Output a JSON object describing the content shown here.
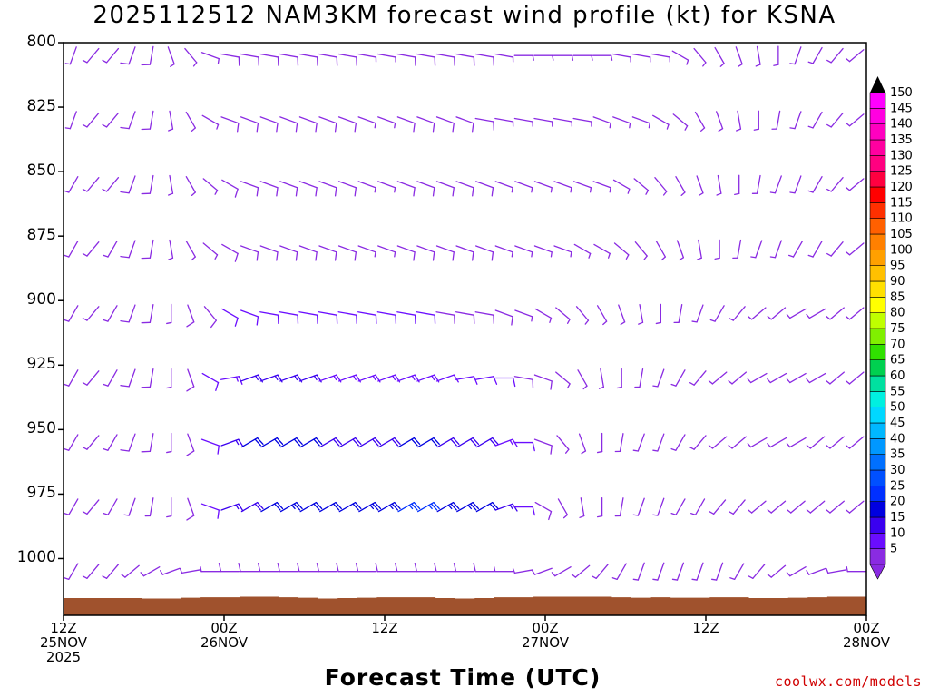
{
  "title": "2025112512 NAM3KM forecast wind profile (kt) for KSNA",
  "credit": "coolwx.com/models",
  "chart_data": {
    "type": "wind_barb_time_height",
    "title": "2025112512 NAM3KM forecast wind profile (kt) for KSNA",
    "xlabel": "Forecast Time (UTC)",
    "ylabel": "",
    "ylim": [
      1022,
      800
    ],
    "y_ticks": [
      "800",
      "825",
      "850",
      "875",
      "900",
      "925",
      "950",
      "975",
      "1000"
    ],
    "x_ticks": [
      {
        "hour": 0,
        "line1": "12Z",
        "line2": "25NOV",
        "line3": "2025"
      },
      {
        "hour": 12,
        "line1": "00Z",
        "line2": "26NOV",
        "line3": ""
      },
      {
        "hour": 24,
        "line1": "12Z",
        "line2": "",
        "line3": ""
      },
      {
        "hour": 36,
        "line1": "00Z",
        "line2": "27NOV",
        "line3": ""
      },
      {
        "hour": 48,
        "line1": "12Z",
        "line2": "",
        "line3": ""
      },
      {
        "hour": 60,
        "line1": "00Z",
        "line2": "28NOV",
        "line3": ""
      }
    ],
    "hours_range": [
      0,
      60
    ],
    "legend_placement": "right",
    "color_scale": {
      "levels": [
        5,
        10,
        15,
        20,
        25,
        30,
        35,
        40,
        45,
        50,
        55,
        60,
        65,
        70,
        75,
        80,
        85,
        90,
        95,
        100,
        105,
        110,
        115,
        120,
        125,
        130,
        135,
        140,
        145,
        150
      ],
      "colors": [
        "#8a2be2",
        "#6a0dff",
        "#3a00f0",
        "#0000e0",
        "#0030ff",
        "#0050ff",
        "#0070ff",
        "#0098ff",
        "#00b8ff",
        "#00d8ff",
        "#00f0e0",
        "#00e0a0",
        "#00d050",
        "#30e000",
        "#80f000",
        "#c0ff00",
        "#ffff00",
        "#ffe000",
        "#ffc000",
        "#ffa000",
        "#ff8000",
        "#ff6000",
        "#ff3000",
        "#ff0000",
        "#ff0040",
        "#ff0080",
        "#ff00a0",
        "#ff00c0",
        "#ff00e0",
        "#ff00ff"
      ]
    },
    "terrain": {
      "color": "#a0522d",
      "surface_pressure": [
        1015.3,
        1015.3,
        1015.3,
        1015.3,
        1015.5,
        1015.5,
        1015.2,
        1015.0,
        1015.0,
        1014.8,
        1014.8,
        1015.0,
        1015.2,
        1015.5,
        1015.3,
        1015.2,
        1015.0,
        1015.0,
        1015.0,
        1015.3,
        1015.5,
        1015.3,
        1015.0,
        1015.0,
        1014.8,
        1014.8,
        1014.8,
        1014.8,
        1015.0,
        1015.2,
        1015.0,
        1015.2,
        1015.2,
        1015.0,
        1015.0,
        1015.3,
        1015.3,
        1015.2,
        1015.0,
        1014.8,
        1014.8
      ]
    },
    "low_level_jet": {
      "hours": [
        15.0,
        31.5
      ],
      "pressure": [
        925,
        975
      ],
      "peak_kt": 25,
      "direction_deg": 60
    },
    "series": [
      {
        "pressure": 805,
        "speed_kt": [
          6,
          6,
          6,
          8,
          8,
          7,
          7,
          7,
          8,
          8,
          9,
          9,
          9,
          8,
          8,
          7,
          7,
          8,
          8,
          8,
          8,
          8,
          7,
          6,
          6,
          6,
          6,
          6,
          5,
          6,
          6,
          6,
          6,
          6,
          6,
          6,
          6,
          6,
          6,
          6,
          6
        ],
        "dir_deg": [
          200,
          220,
          220,
          200,
          190,
          160,
          140,
          110,
          100,
          100,
          100,
          100,
          100,
          100,
          100,
          100,
          100,
          100,
          100,
          100,
          100,
          100,
          100,
          90,
          90,
          90,
          90,
          90,
          100,
          100,
          100,
          120,
          140,
          150,
          160,
          170,
          180,
          200,
          210,
          220,
          230
        ]
      },
      {
        "pressure": 830,
        "speed_kt": [
          6,
          6,
          6,
          8,
          8,
          7,
          7,
          7,
          8,
          8,
          9,
          9,
          9,
          8,
          8,
          7,
          7,
          8,
          8,
          8,
          8,
          8,
          7,
          6,
          6,
          6,
          6,
          6,
          5,
          6,
          6,
          6,
          6,
          6,
          6,
          6,
          6,
          6,
          6,
          6,
          6
        ],
        "dir_deg": [
          200,
          220,
          220,
          200,
          190,
          170,
          150,
          120,
          110,
          110,
          110,
          110,
          110,
          110,
          110,
          110,
          110,
          110,
          110,
          110,
          110,
          100,
          100,
          100,
          100,
          100,
          100,
          110,
          110,
          110,
          120,
          130,
          150,
          160,
          170,
          180,
          190,
          200,
          210,
          220,
          230
        ]
      },
      {
        "pressure": 855,
        "speed_kt": [
          6,
          6,
          6,
          8,
          8,
          7,
          7,
          7,
          8,
          8,
          9,
          9,
          9,
          8,
          8,
          7,
          7,
          8,
          8,
          8,
          8,
          8,
          7,
          6,
          6,
          6,
          6,
          6,
          5,
          6,
          6,
          6,
          6,
          6,
          6,
          6,
          6,
          6,
          6,
          6,
          6
        ],
        "dir_deg": [
          210,
          220,
          220,
          200,
          190,
          170,
          150,
          130,
          120,
          110,
          110,
          110,
          110,
          110,
          110,
          110,
          110,
          110,
          110,
          110,
          110,
          110,
          110,
          110,
          110,
          110,
          110,
          110,
          120,
          130,
          140,
          150,
          160,
          170,
          180,
          190,
          200,
          200,
          210,
          220,
          230
        ]
      },
      {
        "pressure": 880,
        "speed_kt": [
          6,
          6,
          6,
          8,
          8,
          7,
          7,
          7,
          8,
          8,
          9,
          9,
          9,
          8,
          8,
          7,
          7,
          8,
          8,
          8,
          8,
          8,
          7,
          6,
          6,
          6,
          6,
          6,
          5,
          6,
          6,
          6,
          6,
          6,
          6,
          6,
          6,
          6,
          6,
          6,
          6
        ],
        "dir_deg": [
          210,
          220,
          210,
          200,
          190,
          170,
          150,
          130,
          120,
          110,
          110,
          110,
          110,
          110,
          110,
          110,
          110,
          110,
          110,
          110,
          110,
          110,
          110,
          110,
          110,
          110,
          120,
          120,
          130,
          140,
          150,
          160,
          170,
          180,
          190,
          200,
          200,
          210,
          210,
          220,
          230
        ]
      },
      {
        "pressure": 905,
        "speed_kt": [
          6,
          6,
          6,
          8,
          8,
          7,
          8,
          9,
          10,
          10,
          11,
          11,
          11,
          10,
          10,
          10,
          10,
          10,
          10,
          9,
          9,
          9,
          8,
          7,
          7,
          6,
          6,
          6,
          5,
          6,
          6,
          6,
          6,
          6,
          6,
          6,
          6,
          6,
          6,
          6,
          6
        ],
        "dir_deg": [
          210,
          220,
          210,
          200,
          190,
          180,
          160,
          140,
          120,
          110,
          100,
          100,
          100,
          100,
          100,
          100,
          100,
          100,
          100,
          100,
          100,
          100,
          110,
          110,
          120,
          130,
          140,
          150,
          160,
          170,
          180,
          190,
          200,
          210,
          220,
          230,
          230,
          240,
          240,
          230,
          230
        ]
      },
      {
        "pressure": 930,
        "speed_kt": [
          6,
          6,
          6,
          8,
          8,
          7,
          8,
          10,
          14,
          16,
          16,
          16,
          15,
          14,
          14,
          14,
          13,
          13,
          13,
          12,
          12,
          11,
          10,
          9,
          8,
          7,
          6,
          6,
          5,
          6,
          6,
          6,
          6,
          6,
          6,
          6,
          6,
          6,
          6,
          6,
          6
        ],
        "dir_deg": [
          210,
          220,
          210,
          200,
          190,
          180,
          160,
          120,
          80,
          70,
          70,
          70,
          70,
          70,
          70,
          70,
          70,
          70,
          70,
          70,
          80,
          80,
          90,
          100,
          110,
          130,
          150,
          170,
          180,
          190,
          200,
          210,
          220,
          230,
          230,
          240,
          240,
          240,
          240,
          230,
          230
        ]
      },
      {
        "pressure": 955,
        "speed_kt": [
          6,
          6,
          6,
          8,
          8,
          7,
          8,
          10,
          16,
          20,
          21,
          21,
          20,
          18,
          18,
          19,
          19,
          20,
          20,
          19,
          19,
          18,
          14,
          10,
          8,
          7,
          6,
          6,
          5,
          6,
          6,
          6,
          6,
          6,
          6,
          6,
          6,
          6,
          6,
          6,
          6
        ],
        "dir_deg": [
          210,
          220,
          210,
          200,
          190,
          180,
          160,
          110,
          70,
          60,
          60,
          60,
          60,
          60,
          60,
          60,
          60,
          60,
          60,
          60,
          60,
          60,
          70,
          90,
          110,
          140,
          160,
          180,
          190,
          200,
          200,
          210,
          220,
          230,
          230,
          240,
          240,
          240,
          230,
          230,
          230
        ]
      },
      {
        "pressure": 980,
        "speed_kt": [
          6,
          6,
          6,
          7,
          7,
          7,
          8,
          10,
          15,
          19,
          22,
          23,
          22,
          21,
          22,
          23,
          24,
          25,
          25,
          24,
          23,
          22,
          16,
          11,
          8,
          7,
          6,
          6,
          5,
          6,
          6,
          6,
          6,
          6,
          6,
          6,
          6,
          6,
          6,
          6,
          6
        ],
        "dir_deg": [
          210,
          220,
          210,
          200,
          190,
          180,
          160,
          110,
          70,
          60,
          60,
          60,
          60,
          60,
          60,
          60,
          60,
          60,
          60,
          60,
          60,
          60,
          70,
          90,
          120,
          150,
          170,
          180,
          190,
          200,
          200,
          210,
          210,
          220,
          220,
          230,
          230,
          230,
          230,
          230,
          230
        ]
      },
      {
        "pressure": 1005,
        "speed_kt": [
          5,
          5,
          5,
          5,
          5,
          5,
          6,
          7,
          8,
          9,
          9,
          9,
          9,
          9,
          9,
          9,
          9,
          9,
          9,
          8,
          8,
          8,
          7,
          6,
          6,
          5,
          5,
          5,
          5,
          5,
          5,
          5,
          5,
          5,
          5,
          5,
          5,
          5,
          5,
          5,
          5
        ],
        "dir_deg": [
          210,
          220,
          220,
          230,
          240,
          250,
          260,
          270,
          270,
          270,
          270,
          270,
          270,
          270,
          270,
          270,
          270,
          270,
          270,
          270,
          270,
          270,
          270,
          260,
          250,
          240,
          230,
          220,
          210,
          200,
          200,
          200,
          200,
          200,
          210,
          220,
          230,
          240,
          250,
          260,
          270
        ]
      }
    ]
  }
}
